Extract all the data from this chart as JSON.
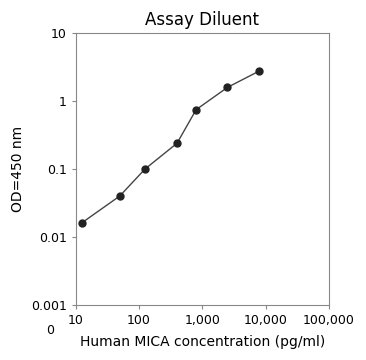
{
  "title": "Assay Diluent",
  "xlabel": "Human MICA concentration (pg/ml)",
  "ylabel": "OD=450 nm",
  "x_data": [
    12.5,
    50,
    125,
    400,
    800,
    2500,
    8000
  ],
  "y_data": [
    0.016,
    0.04,
    0.1,
    0.24,
    0.75,
    1.6,
    2.8
  ],
  "xlim": [
    10,
    100000
  ],
  "ylim": [
    0.001,
    10
  ],
  "xticks": [
    10,
    100,
    1000,
    10000,
    100000
  ],
  "xtick_labels": [
    "10",
    "100",
    "1,000",
    "10,000",
    "100,000"
  ],
  "yticks": [
    0.001,
    0.01,
    0.1,
    1,
    10
  ],
  "ytick_labels": [
    "0.001",
    "0.01",
    "0.1",
    "1",
    "10"
  ],
  "line_color": "#444444",
  "marker_color": "#222222",
  "marker_size": 5,
  "line_width": 1.0,
  "bg_color": "#ffffff",
  "plot_bg_color": "#ffffff",
  "title_fontsize": 12,
  "label_fontsize": 10,
  "tick_fontsize": 9
}
